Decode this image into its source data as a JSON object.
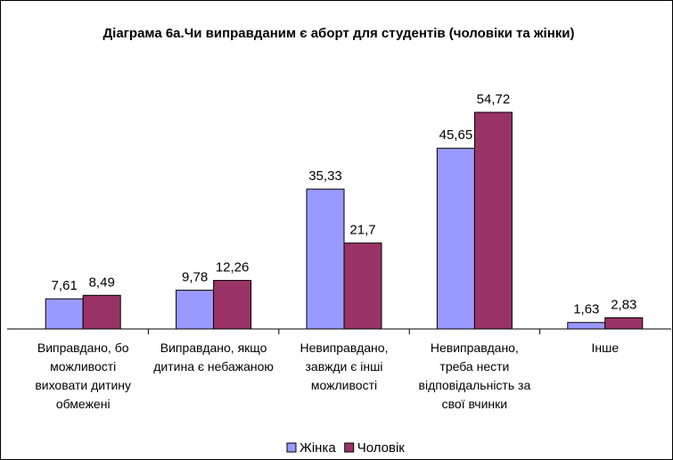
{
  "chart_data": {
    "type": "bar",
    "title": "Діаграма 6а.Чи виправданим є аборт для студентів (чоловіки та жінки)",
    "categories": [
      "Виправдано, бо можливості виховати дитину обмежені",
      "Виправдано, якщо дитина є небажаною",
      "Невиправдано, завжди є інші можливості",
      "Невиправдано, треба нести відповідальність за свої вчинки",
      "Інше"
    ],
    "series": [
      {
        "name": "Жінка",
        "color": "#9999ff",
        "values": [
          7.61,
          9.78,
          35.33,
          45.65,
          1.63
        ],
        "value_labels": [
          "7,61",
          "9,78",
          "35,33",
          "45,65",
          "1,63"
        ]
      },
      {
        "name": "Чоловік",
        "color": "#993366",
        "values": [
          8.49,
          12.26,
          21.7,
          54.72,
          2.83
        ],
        "value_labels": [
          "8,49",
          "12,26",
          "21,7",
          "54,72",
          "2,83"
        ]
      }
    ],
    "legend": "bottom"
  }
}
